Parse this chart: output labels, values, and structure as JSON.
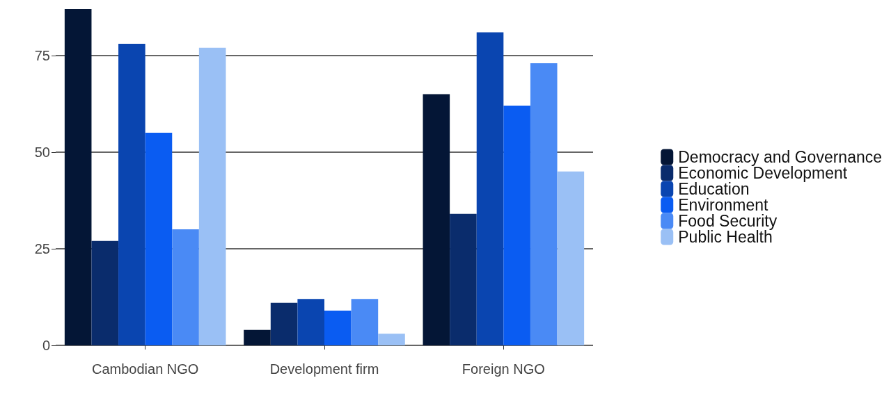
{
  "chart_data": {
    "type": "bar",
    "categories": [
      "Cambodian NGO",
      "Development firm",
      "Foreign NGO"
    ],
    "series": [
      {
        "name": "Democracy and Governance",
        "color": "#041636",
        "values": [
          87,
          4,
          65
        ]
      },
      {
        "name": "Economic Development",
        "color": "#0a2c6c",
        "values": [
          27,
          11,
          34
        ]
      },
      {
        "name": "Education",
        "color": "#0a45b0",
        "values": [
          78,
          12,
          81
        ]
      },
      {
        "name": "Environment",
        "color": "#0a5cf2",
        "values": [
          55,
          9,
          62
        ]
      },
      {
        "name": "Food Security",
        "color": "#4a8af5",
        "values": [
          30,
          12,
          73
        ]
      },
      {
        "name": "Public Health",
        "color": "#9ac0f5",
        "values": [
          77,
          3,
          45
        ]
      }
    ],
    "ylim": [
      0,
      87
    ],
    "yticks": [
      0,
      25,
      50,
      75
    ],
    "grid": "y",
    "legend": "right"
  }
}
